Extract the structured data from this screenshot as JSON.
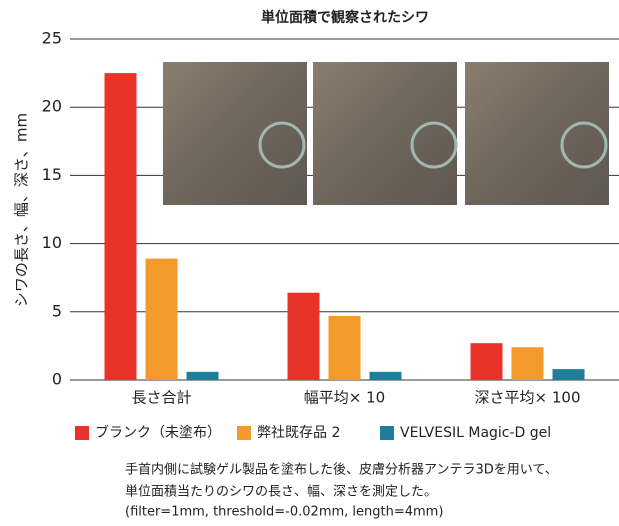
{
  "chart_data": {
    "type": "bar",
    "title": "単位面積で観察されたシワ",
    "y_label": "シワの長さ、幅、深さ、mm",
    "categories": [
      "長さ合計",
      "幅平均× 10",
      "深さ平均× 100"
    ],
    "series": [
      {
        "name": "ブランク（未塗布）",
        "color": "#e8332a",
        "values": [
          22.5,
          6.4,
          2.7
        ]
      },
      {
        "name": "弊社既存品 2",
        "color": "#f39a2b",
        "values": [
          8.9,
          4.7,
          2.4
        ]
      },
      {
        "name": "VELVESIL Magic-D gel",
        "color": "#1f7f9b",
        "values": [
          0.6,
          0.6,
          0.8
        ]
      }
    ],
    "ylim": [
      0,
      25
    ],
    "yticks": [
      0,
      5,
      10,
      15,
      20,
      25
    ],
    "grid": true,
    "legend": "bottom"
  },
  "footnote": [
    "手首内側に試験ゲル製品を塗布した後、皮膚分析器アンテラ3Dを用いて、",
    "単位面積当たりのシワの長さ、幅、深さを測定した。",
    "(filter=1mm, threshold=-0.02mm, length=4mm)"
  ]
}
